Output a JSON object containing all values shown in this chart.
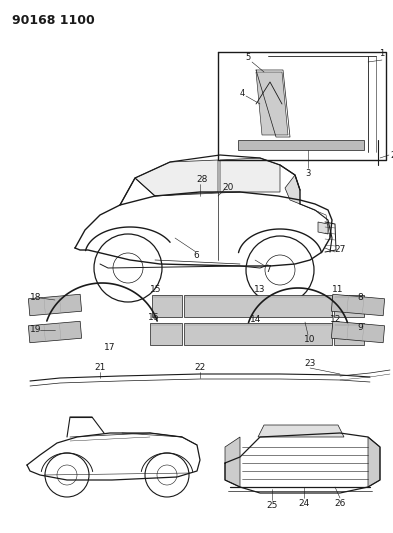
{
  "title_code": "90168 1100",
  "background_color": "#ffffff",
  "line_color": "#1a1a1a",
  "figsize": [
    3.93,
    5.33
  ],
  "dpi": 100
}
